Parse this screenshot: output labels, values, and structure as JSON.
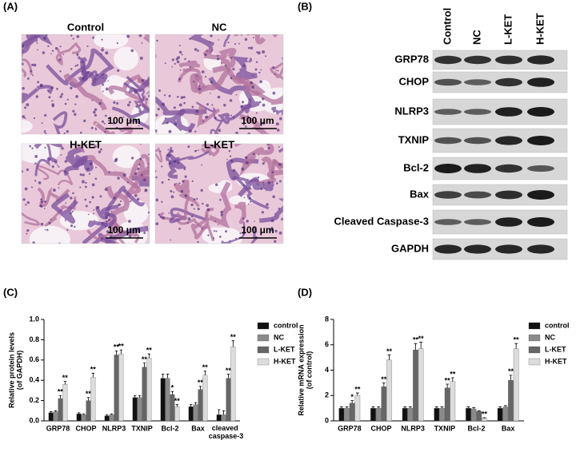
{
  "panels": [
    "(A)",
    "(B)",
    "(C)",
    "(D)"
  ],
  "histology": {
    "groups": [
      "Control",
      "NC",
      "H-KET",
      "L-KET"
    ],
    "scale_bar": "100 μm"
  },
  "blot": {
    "lanes": [
      "Control",
      "NC",
      "L-KET",
      "H-KET"
    ],
    "proteins": [
      "GRP78",
      "CHOP",
      "NLRP3",
      "TXNIP",
      "Bcl-2",
      "Bax",
      "Cleaved Caspase-3",
      "GAPDH"
    ]
  },
  "chart_data": [
    {
      "type": "bar",
      "ylabel": [
        "Relative protein levels",
        "(of GAPDH)"
      ],
      "categories": [
        "GRP78",
        "CHOP",
        "NLRP3",
        "TXNIP",
        "Bcl-2",
        "Bax",
        "cleaved caspase-3"
      ],
      "ylim": [
        0,
        1
      ],
      "yticks": [
        {
          "value": 0,
          "label": "0.0"
        },
        0.2,
        0.4,
        0.6,
        0.8,
        {
          "value": 1,
          "label": "1.0"
        }
      ],
      "series": [
        {
          "name": "control",
          "color": "#111111",
          "values": [
            0.08,
            0.07,
            0.05,
            0.23,
            0.42,
            0.14,
            0.06
          ],
          "errors": [
            0.01,
            0.01,
            0.01,
            0.02,
            0.04,
            0.02,
            0.05
          ],
          "significance": [
            null,
            null,
            null,
            null,
            null,
            null,
            null
          ]
        },
        {
          "name": "NC",
          "color": "#8a8a8a",
          "values": [
            0.09,
            0.06,
            0.06,
            0.23,
            0.42,
            0.16,
            0.06
          ],
          "errors": [
            0.01,
            0.01,
            0.01,
            0.02,
            0.04,
            0.02,
            0.04
          ],
          "significance": [
            null,
            null,
            null,
            null,
            null,
            null,
            null
          ]
        },
        {
          "name": "L-KET",
          "color": "#666666",
          "values": [
            0.22,
            0.2,
            0.65,
            0.53,
            0.26,
            0.31,
            0.42
          ],
          "errors": [
            0.03,
            0.03,
            0.04,
            0.04,
            0.03,
            0.03,
            0.04
          ],
          "significance": [
            "**",
            "**",
            "**",
            "**",
            "*",
            "**",
            "**"
          ]
        },
        {
          "name": "H-KET",
          "color": "#dcdcdc",
          "values": [
            0.36,
            0.43,
            0.66,
            0.62,
            0.14,
            0.45,
            0.73
          ],
          "errors": [
            0.03,
            0.04,
            0.04,
            0.04,
            0.02,
            0.04,
            0.06
          ],
          "significance": [
            "**",
            "**",
            "**",
            "**",
            "**",
            "**",
            "**"
          ]
        }
      ]
    },
    {
      "type": "bar",
      "ylabel": [
        "Relative mRNA expression",
        "(of control)"
      ],
      "categories": [
        "GRP78",
        "CHOP",
        "NLRP3",
        "TXNIP",
        "Bcl-2",
        "Bax"
      ],
      "ylim": [
        0,
        8
      ],
      "yticks": [
        0,
        2,
        4,
        6,
        8
      ],
      "series": [
        {
          "name": "control",
          "color": "#111111",
          "values": [
            1,
            1,
            1,
            1,
            1,
            1
          ],
          "errors": [
            0.1,
            0.1,
            0.1,
            0.1,
            0.1,
            0.1
          ],
          "significance": [
            null,
            null,
            null,
            null,
            null,
            null
          ]
        },
        {
          "name": "NC",
          "color": "#8a8a8a",
          "values": [
            1,
            1,
            1,
            1,
            0.95,
            1.1
          ],
          "errors": [
            0.1,
            0.1,
            0.1,
            0.1,
            0.1,
            0.1
          ],
          "significance": [
            null,
            null,
            null,
            null,
            null,
            null
          ]
        },
        {
          "name": "L-KET",
          "color": "#666666",
          "values": [
            1.4,
            2.7,
            5.6,
            2.6,
            0.75,
            3.2
          ],
          "errors": [
            0.2,
            0.3,
            0.5,
            0.3,
            0.05,
            0.4
          ],
          "significance": [
            "*",
            "**",
            "**",
            "**",
            null,
            "**"
          ]
        },
        {
          "name": "H-KET",
          "color": "#dcdcdc",
          "values": [
            2,
            4.8,
            5.7,
            3.1,
            0.2,
            5.7
          ],
          "errors": [
            0.2,
            0.4,
            0.5,
            0.3,
            0.05,
            0.4
          ],
          "significance": [
            "**",
            "**",
            "**",
            "**",
            "**",
            "**"
          ]
        }
      ]
    }
  ]
}
